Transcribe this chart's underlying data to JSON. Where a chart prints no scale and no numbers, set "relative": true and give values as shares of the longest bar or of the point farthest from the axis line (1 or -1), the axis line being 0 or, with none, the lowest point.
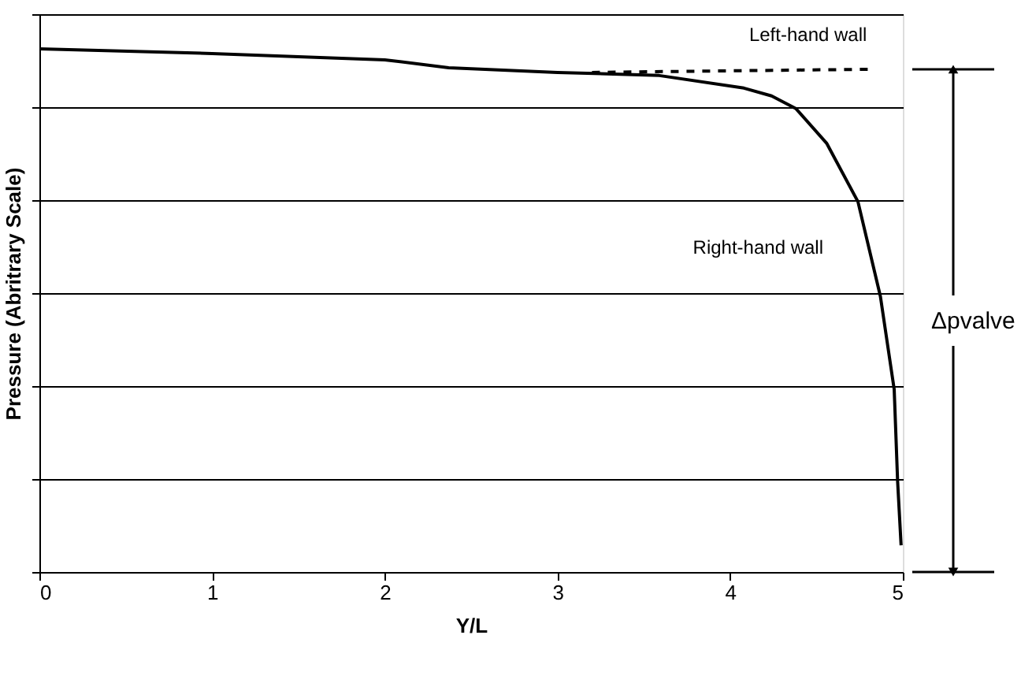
{
  "chart_data": {
    "type": "line",
    "relative": true,
    "xlabel": "Y/L",
    "ylabel": "Pressure (Abritrary Scale)",
    "xlim": [
      0,
      5
    ],
    "xticks": [
      0,
      1,
      2,
      3,
      4,
      5
    ],
    "grid": "y",
    "tick_labels": "x",
    "legend": false,
    "annotations": [
      "Δpvalve"
    ],
    "series": [
      {
        "name": "Right-hand wall",
        "color": "#000000",
        "line_style": "solid",
        "x": [
          0,
          1,
          2,
          2.37,
          3,
          3.59,
          4.08,
          4.24,
          4.38,
          4.56,
          4.74,
          4.87,
          4.95,
          4.97,
          4.99
        ],
        "values": [
          1.0,
          0.991,
          0.979,
          0.964,
          0.955,
          0.949,
          0.925,
          0.91,
          0.886,
          0.819,
          0.708,
          0.527,
          0.349,
          0.172,
          0.051
        ]
      },
      {
        "name": "Left-hand wall",
        "color": "#000000",
        "line_style": "dashed",
        "x": [
          3.2,
          4,
          4.81
        ],
        "values": [
          0.955,
          0.958,
          0.961
        ]
      }
    ]
  }
}
